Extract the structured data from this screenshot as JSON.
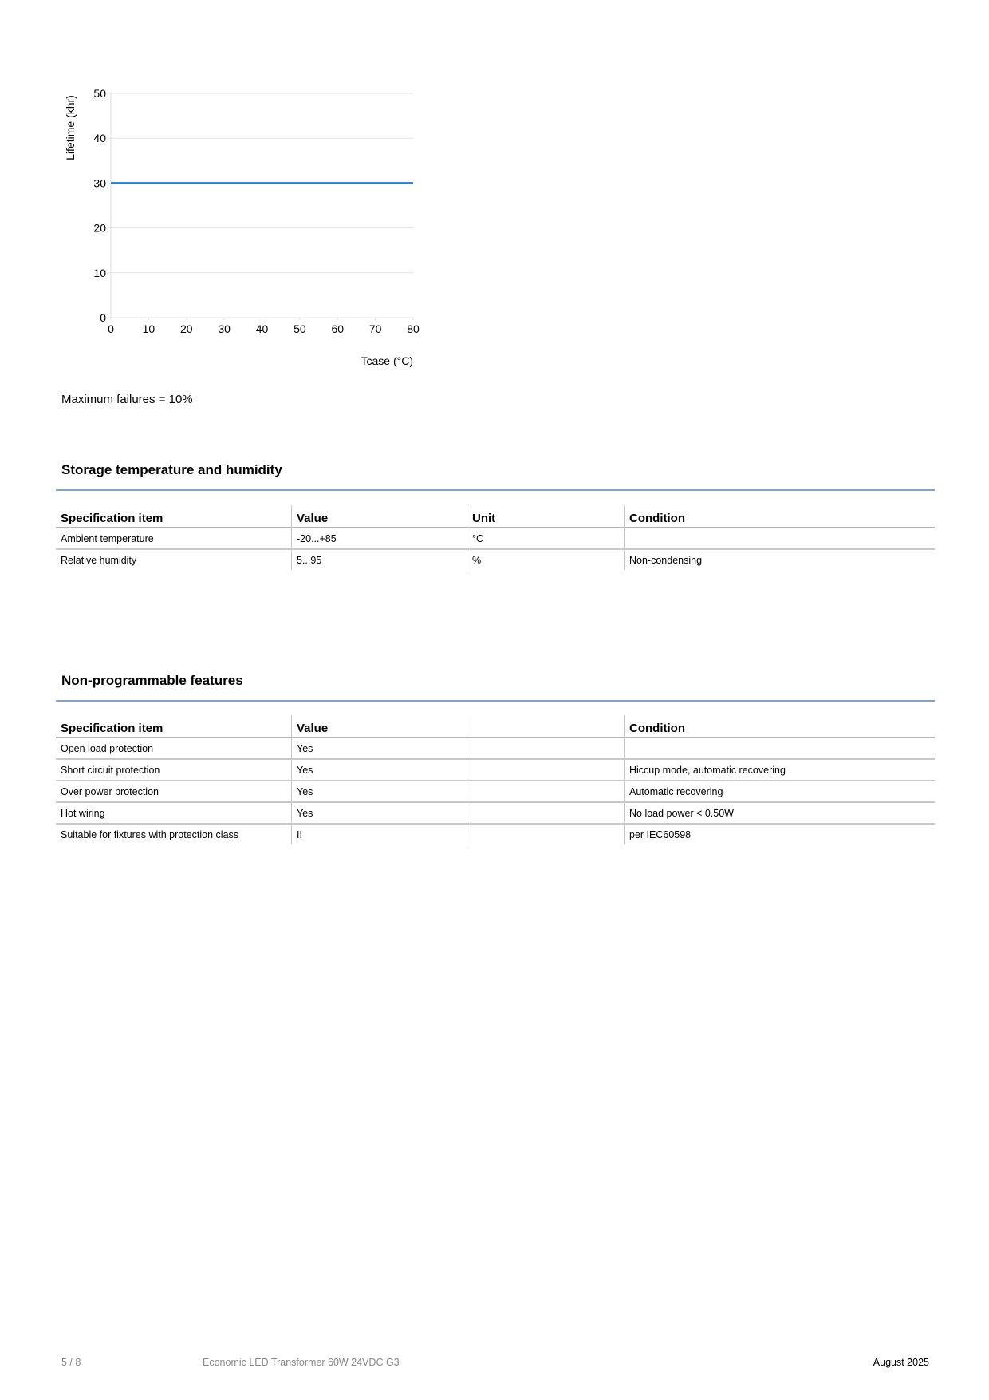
{
  "chart_data": {
    "type": "line",
    "xlabel": "Tcase (°C)",
    "ylabel": "Lifetime (khr)",
    "xlim": [
      0,
      80
    ],
    "ylim": [
      0,
      50
    ],
    "xticks": [
      "0",
      "10",
      "20",
      "30",
      "40",
      "50",
      "60",
      "70",
      "80"
    ],
    "yticks": [
      "0",
      "10",
      "20",
      "30",
      "40",
      "50"
    ],
    "grid": true,
    "series": [
      {
        "x": [
          0,
          80
        ],
        "y": [
          30,
          30
        ],
        "color": "#2f7bc4"
      }
    ]
  },
  "note": "Maximum failures = 10%",
  "storage": {
    "title": "Storage temperature and humidity",
    "headers": [
      "Specification item",
      "Value",
      "Unit",
      "Condition"
    ],
    "rows": [
      [
        "Ambient temperature",
        "-20...+85",
        "°C",
        ""
      ],
      [
        "Relative humidity",
        "5...95",
        "%",
        "Non-condensing"
      ]
    ]
  },
  "features": {
    "title": "Non-programmable features",
    "headers": [
      "Specification item",
      "Value",
      "",
      "Condition"
    ],
    "rows": [
      [
        "Open load protection",
        "Yes",
        "",
        ""
      ],
      [
        "Short circuit protection",
        "Yes",
        "",
        "Hiccup mode, automatic recovering"
      ],
      [
        "Over power protection",
        "Yes",
        "",
        "Automatic recovering"
      ],
      [
        "Hot wiring",
        "Yes",
        "",
        "No load power < 0.50W"
      ],
      [
        "Suitable for fixtures with protection class",
        "II",
        "",
        "per IEC60598"
      ]
    ]
  },
  "footer": {
    "page": "5 / 8",
    "product": "Economic LED Transformer 60W 24VDC G3",
    "date": "August 2025"
  }
}
